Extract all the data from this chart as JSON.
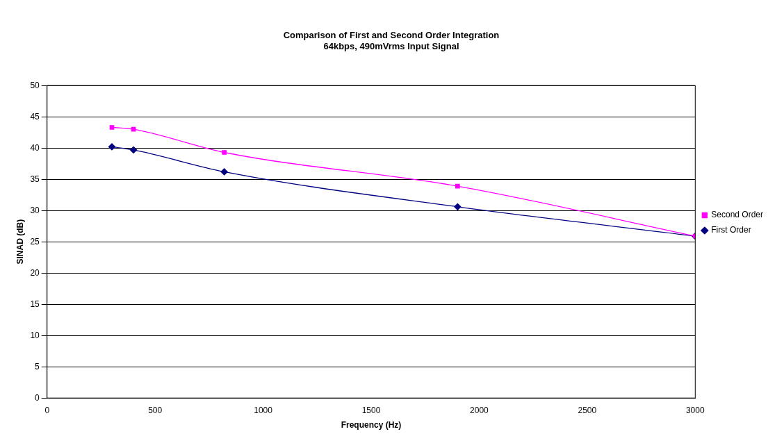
{
  "chart_data": {
    "type": "line",
    "title": "Comparison of First and Second Order Integration",
    "subtitle": "64kbps, 490mVrms Input Signal",
    "xlabel": "Frequency (Hz)",
    "ylabel": "SINAD (dB)",
    "xlim": [
      0,
      3000
    ],
    "xticks": [
      0,
      500,
      1000,
      1500,
      2000,
      2500,
      3000
    ],
    "ylim": [
      0,
      50
    ],
    "yticks": [
      0,
      5,
      10,
      15,
      20,
      25,
      30,
      35,
      40,
      45,
      50
    ],
    "grid": "y",
    "legend": "right",
    "series": [
      {
        "name": "Second Order",
        "color": "#ff00ff",
        "marker": "square",
        "x": [
          300,
          400,
          820,
          1900,
          3000
        ],
        "values": [
          43.3,
          43.0,
          39.3,
          33.9,
          25.9
        ]
      },
      {
        "name": "First Order",
        "color": "#000080",
        "marker": "diamond",
        "x": [
          300,
          400,
          820,
          1900,
          3000
        ],
        "values": [
          40.2,
          39.7,
          36.2,
          30.6,
          25.9
        ]
      }
    ]
  }
}
